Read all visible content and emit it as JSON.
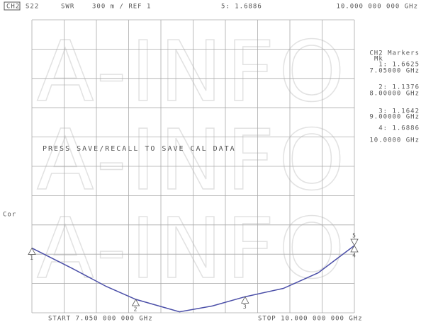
{
  "chart_data": {
    "type": "line",
    "header": {
      "channel": "CH2",
      "parameter": "S22",
      "format": "SWR",
      "scale": "300 m / REF 1",
      "active_marker": "5: 1.6886",
      "active_freq": "10.000 000 000 GHz"
    },
    "watermark": "A-INFO",
    "message": "PRESS SAVE/RECALL TO SAVE CAL DATA",
    "side_label": "Cor",
    "start_label": "START 7.050 000 000 GHz",
    "stop_label": "STOP 10.000 000 000 GHz",
    "marker_panel": {
      "title": "CH2 Markers",
      "subtitle": "Mk"
    },
    "x": [
      7.05,
      7.41,
      7.73,
      8.0,
      8.4,
      8.7,
      9.0,
      9.35,
      9.67,
      10.0
    ],
    "series": [
      {
        "name": "S22",
        "color": "#4b4fa8",
        "values": [
          1.6625,
          1.46,
          1.27,
          1.1376,
          1.01,
          1.07,
          1.1642,
          1.25,
          1.41,
          1.6886
        ]
      }
    ],
    "markers": [
      {
        "label": "1",
        "x": 7.05,
        "value": 1.6625,
        "value_label": "1: 1.6625",
        "x_label": "7.05000 GHz"
      },
      {
        "label": "2",
        "x": 8.0,
        "value": 1.1376,
        "value_label": "2: 1.1376",
        "x_label": "8.00000 GHz"
      },
      {
        "label": "3",
        "x": 9.0,
        "value": 1.1642,
        "value_label": "3: 1.1642",
        "x_label": "9.00000 GHz"
      },
      {
        "label": "4",
        "x": 10.0,
        "value": 1.6886,
        "value_label": "4: 1.6886",
        "x_label": "10.0000 GHz"
      },
      {
        "label": "5",
        "x": 10.0,
        "value": 1.6886
      }
    ],
    "xlim": [
      7.05,
      10.0
    ],
    "ylim": [
      1,
      4
    ],
    "xticks": [
      7.05,
      7.345,
      7.64,
      7.935,
      8.23,
      8.525,
      8.82,
      9.115,
      9.41,
      9.705,
      10.0
    ],
    "yticks": [
      1,
      1.3,
      1.6,
      1.9,
      2.2,
      2.5,
      2.8,
      3.1,
      3.4,
      3.7,
      4
    ],
    "grid": true
  }
}
